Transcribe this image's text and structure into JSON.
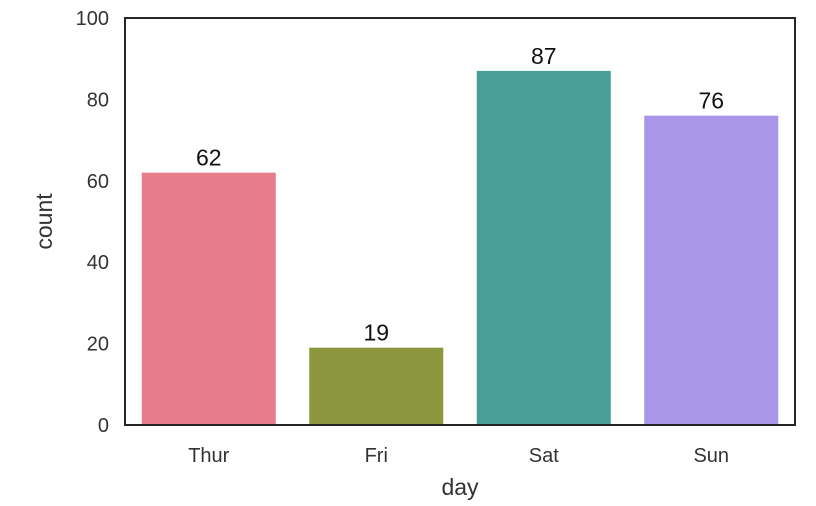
{
  "chart_data": {
    "type": "bar",
    "title": "",
    "xlabel": "day",
    "ylabel": "count",
    "categories": [
      "Thur",
      "Fri",
      "Sat",
      "Sun"
    ],
    "values": [
      62,
      19,
      87,
      76
    ],
    "data_labels": [
      "62",
      "19",
      "87",
      "76"
    ],
    "colors": [
      "#e77c8d",
      "#8c973d",
      "#479f98",
      "#a996e8"
    ],
    "ylim": [
      0,
      100
    ],
    "yticks": [
      0,
      20,
      40,
      60,
      80,
      100
    ],
    "ytick_labels": [
      "0",
      "20",
      "40",
      "60",
      "80",
      "100"
    ],
    "grid": false,
    "legend": "none"
  }
}
